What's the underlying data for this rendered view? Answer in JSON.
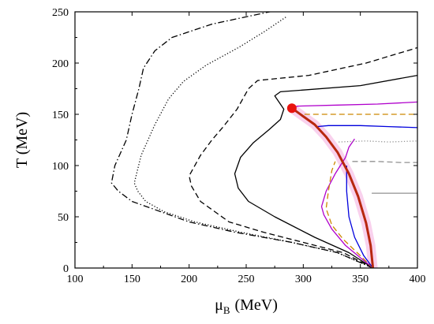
{
  "chart_data": {
    "type": "line",
    "title": "",
    "xlabel": "μ",
    "xlabel_sub": "B",
    "xlabel_unit": "(MeV)",
    "ylabel": "T (MeV)",
    "xlim": [
      100,
      400
    ],
    "ylim": [
      0,
      250
    ],
    "xticks": [
      100,
      150,
      200,
      250,
      300,
      350,
      400
    ],
    "yticks": [
      0,
      50,
      100,
      150,
      200,
      250
    ],
    "grid": false,
    "legend": "none",
    "critical_point": {
      "x": 290,
      "y": 156,
      "color": "#e8130e"
    },
    "series": [
      {
        "color": "#000000",
        "dash": "dashdot",
        "x": [
          361,
          330,
          290,
          240,
          200,
          170,
          150,
          138,
          132,
          135,
          145,
          150,
          156,
          160,
          170,
          185,
          220,
          262,
          292
        ],
        "y": [
          0,
          15,
          25,
          35,
          45,
          57,
          65,
          75,
          83,
          100,
          125,
          150,
          175,
          195,
          212,
          225,
          238,
          248,
          255
        ]
      },
      {
        "color": "#000000",
        "dash": "dot",
        "x": [
          361,
          330,
          290,
          245,
          205,
          178,
          162,
          155,
          152,
          158,
          170,
          182,
          195,
          215,
          243,
          265,
          285
        ],
        "y": [
          0,
          15,
          25,
          35,
          45,
          55,
          65,
          75,
          83,
          110,
          140,
          165,
          182,
          198,
          215,
          230,
          245
        ]
      },
      {
        "color": "#000000",
        "dash": "dash",
        "x": [
          361,
          335,
          300,
          265,
          235,
          210,
          202,
          200,
          210,
          220,
          230,
          242,
          252,
          260,
          305,
          355,
          400
        ],
        "y": [
          0,
          15,
          25,
          35,
          45,
          65,
          80,
          90,
          110,
          125,
          138,
          155,
          175,
          183,
          188,
          200,
          215
        ]
      },
      {
        "color": "#000000",
        "dash": "solid",
        "x": [
          361,
          340,
          310,
          275,
          252,
          243,
          240,
          245,
          256,
          270,
          280,
          283,
          275,
          280,
          350,
          400
        ],
        "y": [
          0,
          15,
          30,
          50,
          65,
          78,
          92,
          108,
          122,
          135,
          145,
          155,
          168,
          172,
          178,
          188
        ]
      },
      {
        "color": "#b000cc",
        "dash": "solid",
        "x": [
          361,
          350,
          337,
          325,
          318,
          316,
          320,
          328,
          337,
          340,
          345
        ],
        "y": [
          0,
          10,
          22,
          38,
          52,
          60,
          75,
          92,
          108,
          118,
          126
        ]
      },
      {
        "color": "#b000cc",
        "dash": "solid",
        "x": [
          290,
          295,
          330,
          365,
          400
        ],
        "y": [
          156,
          158,
          159,
          160,
          162
        ]
      },
      {
        "color": "#cc8800",
        "dash": "dash",
        "x": [
          361,
          350,
          335,
          325,
          320,
          322,
          325,
          328
        ],
        "y": [
          0,
          12,
          28,
          42,
          58,
          75,
          95,
          104
        ]
      },
      {
        "color": "#cc8800",
        "dash": "dash",
        "x": [
          301,
          320,
          350,
          400
        ],
        "y": [
          150,
          150,
          150,
          150
        ]
      },
      {
        "color": "#0000dd",
        "dash": "solid",
        "x": [
          361,
          353,
          345,
          340,
          338,
          338
        ],
        "y": [
          0,
          12,
          30,
          50,
          75,
          100
        ]
      },
      {
        "color": "#0000dd",
        "dash": "solid",
        "x": [
          312,
          322,
          350,
          375,
          400
        ],
        "y": [
          138,
          139,
          139,
          138,
          137
        ]
      },
      {
        "color": "#909090",
        "dash": "dot",
        "x": [
          331,
          355,
          375,
          400
        ],
        "y": [
          123,
          124,
          123,
          124
        ]
      },
      {
        "color": "#909090",
        "dash": "dash",
        "x": [
          343,
          365,
          385,
          400
        ],
        "y": [
          104,
          104,
          103,
          103
        ]
      },
      {
        "color": "#909090",
        "dash": "solid",
        "x": [
          360,
          380,
          400
        ],
        "y": [
          73,
          73,
          73
        ]
      },
      {
        "color": "#b8270f",
        "dash": "solid",
        "width": 3,
        "glow": "#f7c5e8",
        "x": [
          290,
          300,
          310,
          320,
          330,
          340,
          348,
          355,
          359,
          361
        ],
        "y": [
          156,
          148,
          140,
          128,
          113,
          92,
          70,
          44,
          22,
          0
        ]
      }
    ]
  }
}
